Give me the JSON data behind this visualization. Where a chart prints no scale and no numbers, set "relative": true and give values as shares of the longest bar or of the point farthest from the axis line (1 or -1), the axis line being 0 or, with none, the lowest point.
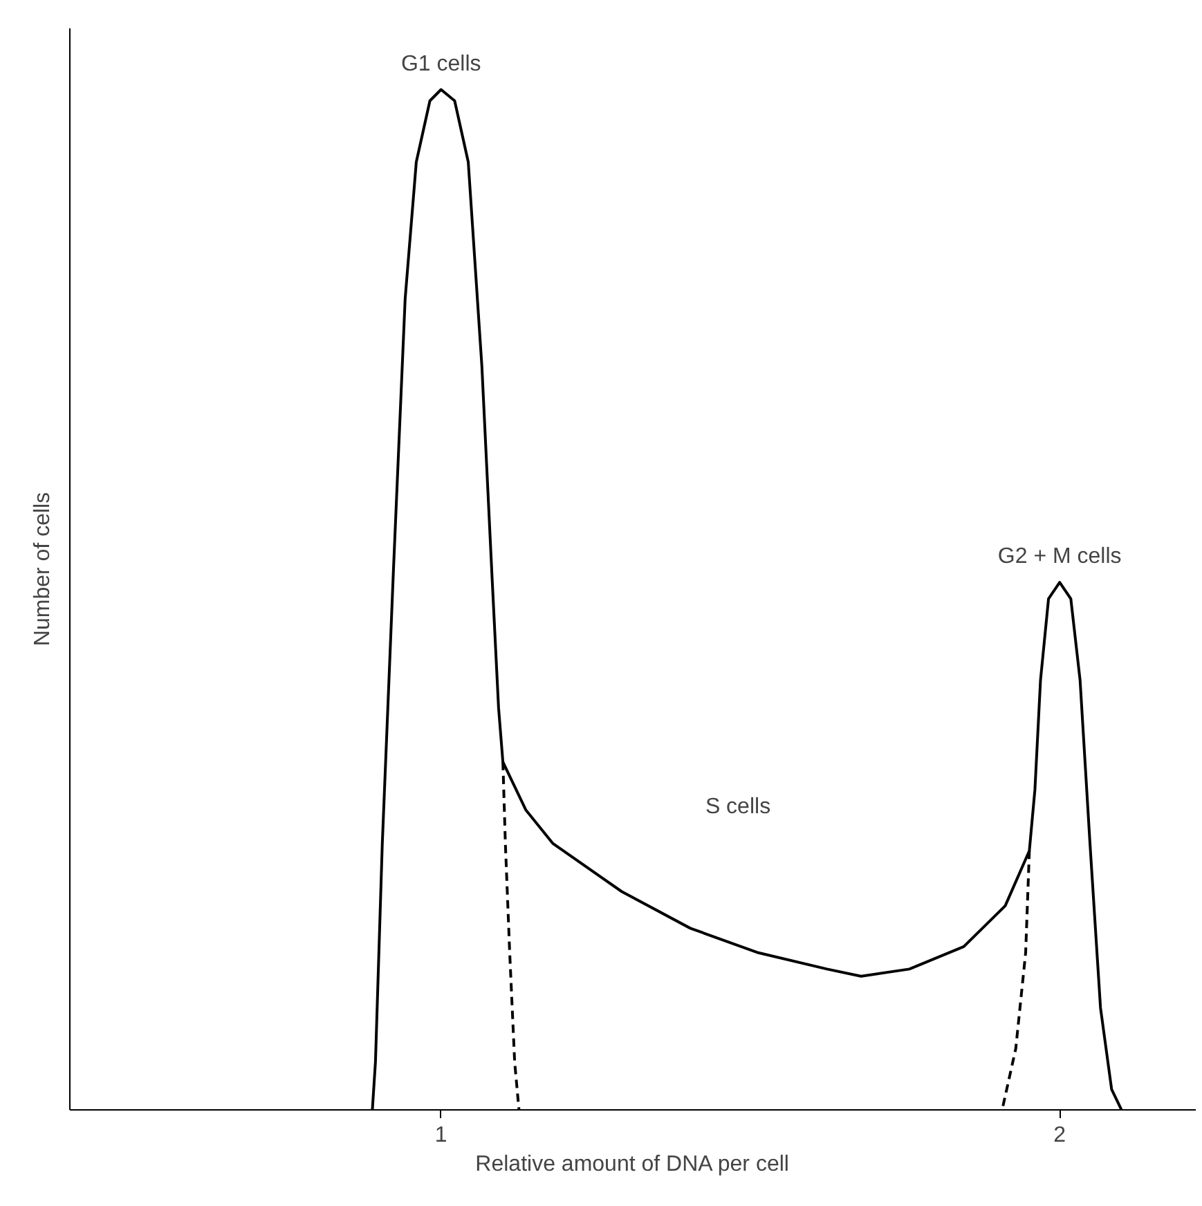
{
  "chart_data": {
    "type": "line",
    "relative": true,
    "xlabel": "Relative amount of DNA per cell",
    "ylabel": "Number of cells",
    "xlim": [
      0.4,
      2.22
    ],
    "xticks": [
      1,
      2
    ],
    "grid": false,
    "marker": "none",
    "series": [
      {
        "color": "#000000",
        "line_style": "solid",
        "x": [
          0.889,
          0.894,
          0.905,
          0.923,
          0.942,
          0.96,
          0.982,
          1.0,
          1.022,
          1.044,
          1.066,
          1.082,
          1.093,
          1.1,
          1.137,
          1.181,
          1.292,
          1.403,
          1.513,
          1.624,
          1.679,
          1.757,
          1.845,
          1.912,
          1.951,
          1.96,
          1.969,
          1.982,
          2.0,
          2.018,
          2.033,
          2.049,
          2.066,
          2.084,
          2.1
        ],
        "values": [
          0,
          0.047,
          0.26,
          0.528,
          0.795,
          0.929,
          0.989,
          1,
          0.989,
          0.929,
          0.729,
          0.528,
          0.394,
          0.341,
          0.294,
          0.261,
          0.214,
          0.178,
          0.154,
          0.138,
          0.131,
          0.138,
          0.16,
          0.2,
          0.254,
          0.314,
          0.421,
          0.501,
          0.517,
          0.501,
          0.421,
          0.261,
          0.1,
          0.02,
          0
        ]
      },
      {
        "color": "#000000",
        "line_style": "dashed",
        "x": [
          1.1,
          1.104,
          1.111,
          1.119,
          1.126
        ],
        "values": [
          0.341,
          0.261,
          0.154,
          0.047,
          0
        ]
      },
      {
        "color": "#000000",
        "line_style": "dashed",
        "x": [
          1.951,
          1.945,
          1.929,
          1.907
        ],
        "values": [
          0.254,
          0.154,
          0.06,
          0
        ]
      }
    ],
    "annotations": [
      {
        "text": "G1 cells",
        "x": 1.0,
        "y": 1
      },
      "S cells",
      {
        "text": "G2 + M cells",
        "x": 2.0,
        "y": 0.517
      }
    ]
  }
}
